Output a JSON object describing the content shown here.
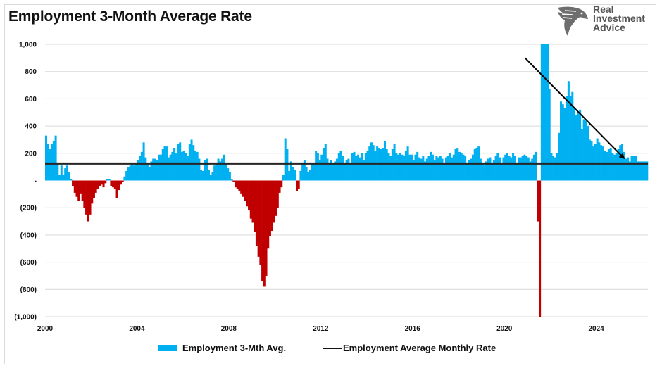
{
  "title": "Employment 3-Month Average Rate",
  "logo": {
    "icon": "eagle-head-icon",
    "line1": "Real",
    "line2": "Investment",
    "line3": "Advice"
  },
  "colors": {
    "positive": "#00b0f0",
    "negative": "#c00000",
    "average_line": "#262626",
    "trend_arrow": "#000000",
    "grid": "#d9d9d9"
  },
  "legend": [
    {
      "label": "Employment 3-Mth Avg.",
      "type": "bar"
    },
    {
      "label": "Employment Average Monthly Rate",
      "type": "line"
    }
  ],
  "chart_data": {
    "type": "bar",
    "title": "Employment 3-Month Average Rate",
    "xlabel": "",
    "ylabel": "",
    "ylim": [
      -1000,
      1000
    ],
    "yticks": [
      1000,
      800,
      600,
      400,
      200,
      0,
      -200,
      -400,
      -600,
      -800,
      -1000
    ],
    "ytick_labels": [
      "1,000",
      "800",
      "600",
      "400",
      "200",
      "-",
      "(200)",
      "(400)",
      "(600)",
      "(800)",
      "(1,000)"
    ],
    "xlim": [
      2000,
      2026.25
    ],
    "xticks": [
      2000,
      2004,
      2008,
      2012,
      2016,
      2020,
      2024
    ],
    "xtick_labels": [
      "2000",
      "2004",
      "2008",
      "2012",
      "2016",
      "2020",
      "2024"
    ],
    "grid": true,
    "legend_position": "bottom",
    "start": "2000-01",
    "frequency": "monthly",
    "series": [
      {
        "name": "Employment 3-Mth Avg.",
        "type": "bar",
        "values": [
          330,
          270,
          230,
          270,
          290,
          330,
          120,
          40,
          110,
          40,
          90,
          110,
          60,
          10,
          -40,
          -90,
          -120,
          -150,
          -100,
          -150,
          -200,
          -250,
          -300,
          -250,
          -170,
          -130,
          -90,
          -60,
          -40,
          -30,
          -50,
          -20,
          10,
          10,
          -40,
          -50,
          -60,
          -130,
          -70,
          -30,
          -10,
          30,
          70,
          100,
          110,
          120,
          110,
          120,
          150,
          180,
          210,
          280,
          170,
          120,
          100,
          140,
          160,
          160,
          150,
          190,
          190,
          230,
          250,
          250,
          170,
          190,
          210,
          240,
          200,
          270,
          280,
          210,
          220,
          200,
          180,
          270,
          300,
          260,
          220,
          210,
          160,
          80,
          70,
          150,
          160,
          80,
          40,
          60,
          110,
          130,
          160,
          140,
          160,
          190,
          120,
          90,
          60,
          10,
          -10,
          -50,
          -60,
          -80,
          -100,
          -120,
          -150,
          -190,
          -220,
          -280,
          -310,
          -380,
          -480,
          -560,
          -620,
          -740,
          -780,
          -700,
          -500,
          -410,
          -370,
          -310,
          -260,
          -200,
          -90,
          -50,
          40,
          310,
          230,
          70,
          140,
          100,
          80,
          -80,
          -60,
          70,
          120,
          150,
          100,
          60,
          80,
          120,
          130,
          220,
          200,
          150,
          190,
          240,
          270,
          160,
          120,
          150,
          130,
          140,
          160,
          200,
          220,
          180,
          120,
          150,
          160,
          130,
          200,
          210,
          180,
          190,
          170,
          200,
          150,
          200,
          220,
          250,
          280,
          260,
          220,
          250,
          240,
          230,
          240,
          290,
          230,
          200,
          180,
          230,
          270,
          200,
          190,
          200,
          190,
          180,
          220,
          250,
          190,
          190,
          150,
          190,
          210,
          170,
          160,
          180,
          140,
          160,
          180,
          210,
          190,
          150,
          180,
          170,
          180,
          160,
          120,
          170,
          180,
          200,
          170,
          190,
          230,
          240,
          210,
          200,
          190,
          180,
          130,
          150,
          160,
          190,
          230,
          240,
          250,
          160,
          120,
          110,
          140,
          160,
          170,
          130,
          150,
          180,
          200,
          170,
          120,
          170,
          190,
          200,
          180,
          170,
          200,
          180,
          130,
          170,
          170,
          180,
          190,
          180,
          170,
          140,
          160,
          190,
          210,
          -300,
          -1000,
          1000,
          1000,
          1000,
          1000,
          670,
          200,
          180,
          170,
          200,
          350,
          580,
          560,
          530,
          620,
          730,
          620,
          650,
          540,
          480,
          500,
          520,
          380,
          450,
          440,
          400,
          300,
          290,
          250,
          270,
          310,
          280,
          260,
          250,
          220,
          210,
          230,
          240,
          200,
          190,
          200,
          230,
          260,
          270,
          210,
          160,
          170,
          140,
          180,
          180,
          180,
          140,
          140,
          140,
          140,
          140,
          140
        ]
      },
      {
        "name": "Employment Average Monthly Rate",
        "type": "line",
        "value": 125
      }
    ],
    "annotations": [
      {
        "type": "arrow",
        "from": {
          "x": 2020.9,
          "y": 900
        },
        "to": {
          "x": 2025.2,
          "y": 165
        },
        "meaning": "declining trend"
      }
    ]
  }
}
